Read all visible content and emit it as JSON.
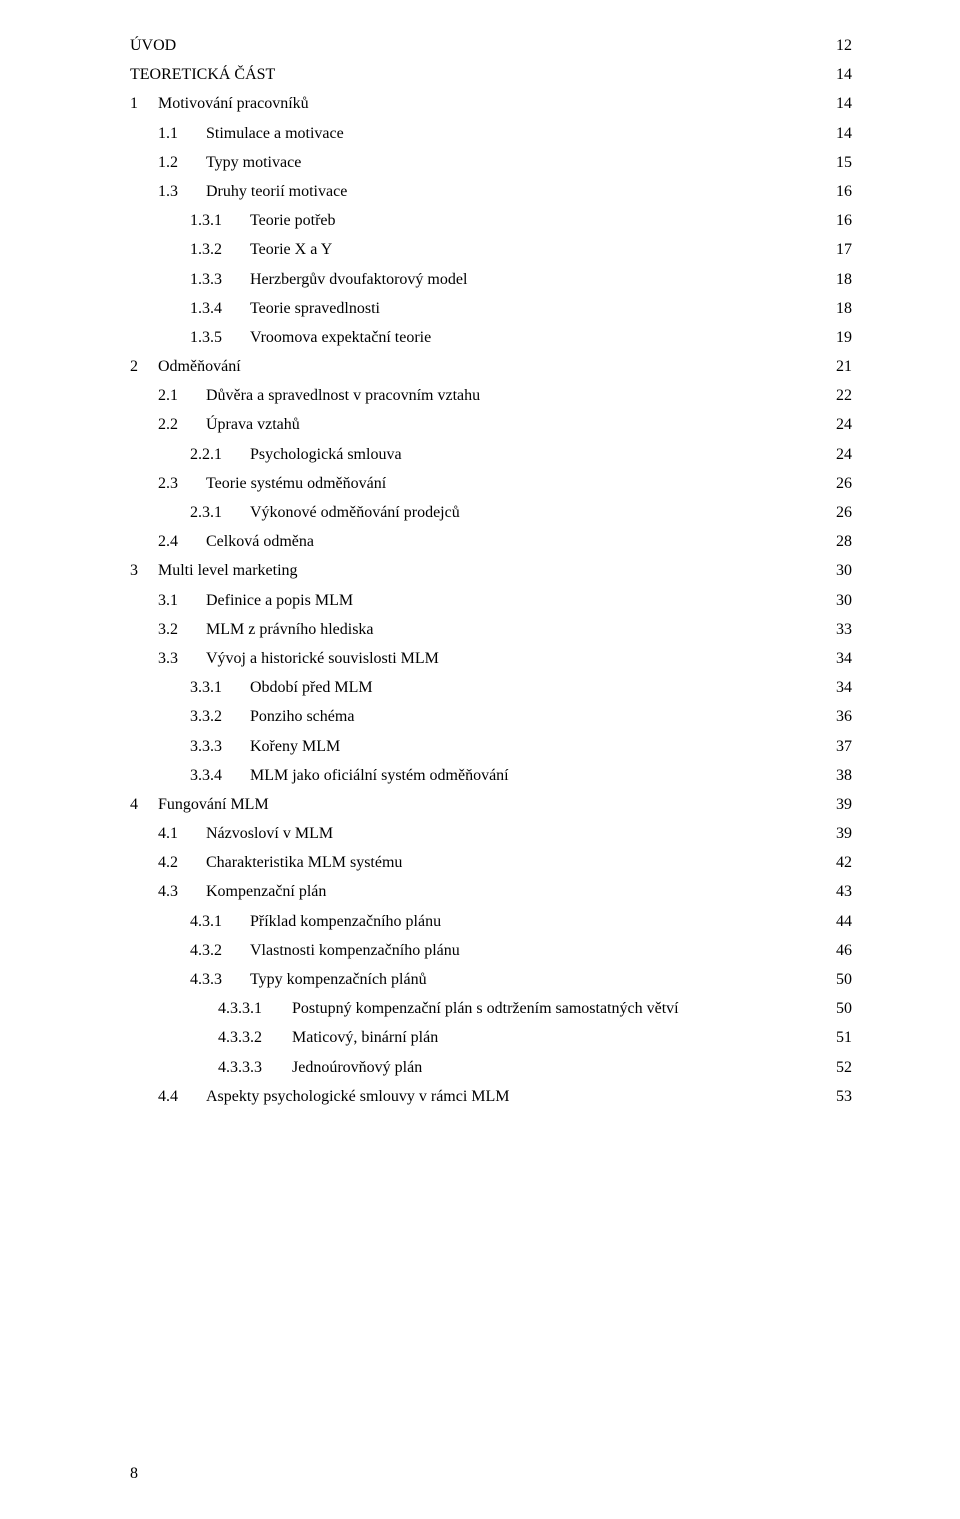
{
  "page_number": "8",
  "font": {
    "family": "Times New Roman",
    "size_pt": 12,
    "color": "#000000"
  },
  "background_color": "#ffffff",
  "toc": [
    {
      "level": 0,
      "num": "",
      "title": "ÚVOD",
      "page": "12"
    },
    {
      "level": 0,
      "num": "",
      "title": "TEORETICKÁ ČÁST",
      "page": "14"
    },
    {
      "level": 1,
      "num": "1",
      "title": "Motivování pracovníků",
      "page": "14"
    },
    {
      "level": 2,
      "num": "1.1",
      "title": "Stimulace a motivace",
      "page": "14"
    },
    {
      "level": 2,
      "num": "1.2",
      "title": "Typy motivace",
      "page": "15"
    },
    {
      "level": 2,
      "num": "1.3",
      "title": "Druhy teorií motivace",
      "page": "16"
    },
    {
      "level": 3,
      "num": "1.3.1",
      "title": "Teorie potřeb",
      "page": "16"
    },
    {
      "level": 3,
      "num": "1.3.2",
      "title": "Teorie X a Y",
      "page": "17"
    },
    {
      "level": 3,
      "num": "1.3.3",
      "title": "Herzbergův dvoufaktorový model",
      "page": "18"
    },
    {
      "level": 3,
      "num": "1.3.4",
      "title": "Teorie spravedlnosti",
      "page": "18"
    },
    {
      "level": 3,
      "num": "1.3.5",
      "title": "Vroomova expektační teorie",
      "page": "19"
    },
    {
      "level": 1,
      "num": "2",
      "title": "Odměňování",
      "page": "21"
    },
    {
      "level": 2,
      "num": "2.1",
      "title": "Důvěra a spravedlnost v pracovním vztahu",
      "page": "22"
    },
    {
      "level": 2,
      "num": "2.2",
      "title": "Úprava vztahů",
      "page": "24"
    },
    {
      "level": 3,
      "num": "2.2.1",
      "title": "Psychologická smlouva",
      "page": "24"
    },
    {
      "level": 2,
      "num": "2.3",
      "title": "Teorie systému odměňování",
      "page": "26"
    },
    {
      "level": 3,
      "num": "2.3.1",
      "title": "Výkonové odměňování prodejců",
      "page": "26"
    },
    {
      "level": 2,
      "num": "2.4",
      "title": "Celková odměna",
      "page": "28"
    },
    {
      "level": 1,
      "num": "3",
      "title": "Multi level marketing",
      "page": "30"
    },
    {
      "level": 2,
      "num": "3.1",
      "title": "Definice a popis MLM",
      "page": "30"
    },
    {
      "level": 2,
      "num": "3.2",
      "title": "MLM z právního hlediska",
      "page": "33"
    },
    {
      "level": 2,
      "num": "3.3",
      "title": "Vývoj a historické souvislosti MLM",
      "page": "34"
    },
    {
      "level": 3,
      "num": "3.3.1",
      "title": "Období před MLM",
      "page": "34"
    },
    {
      "level": 3,
      "num": "3.3.2",
      "title": "Ponziho schéma",
      "page": "36"
    },
    {
      "level": 3,
      "num": "3.3.3",
      "title": "Kořeny MLM",
      "page": "37"
    },
    {
      "level": 3,
      "num": "3.3.4",
      "title": "MLM jako oficiální systém odměňování",
      "page": "38"
    },
    {
      "level": 1,
      "num": "4",
      "title": "Fungování MLM",
      "page": "39"
    },
    {
      "level": 2,
      "num": "4.1",
      "title": "Názvosloví v MLM",
      "page": "39"
    },
    {
      "level": 2,
      "num": "4.2",
      "title": "Charakteristika MLM systému",
      "page": "42"
    },
    {
      "level": 2,
      "num": "4.3",
      "title": "Kompenzační plán",
      "page": "43"
    },
    {
      "level": 3,
      "num": "4.3.1",
      "title": "Příklad kompenzačního plánu",
      "page": "44"
    },
    {
      "level": 3,
      "num": "4.3.2",
      "title": "Vlastnosti kompenzačního plánu",
      "page": "46"
    },
    {
      "level": 3,
      "num": "4.3.3",
      "title": "Typy kompenzačních plánů",
      "page": "50"
    },
    {
      "level": 4,
      "num": "4.3.3.1",
      "title": "Postupný kompenzační plán s odtržením samostatných větví",
      "page": "50"
    },
    {
      "level": 4,
      "num": "4.3.3.2",
      "title": "Maticový, binární plán",
      "page": "51"
    },
    {
      "level": 4,
      "num": "4.3.3.3",
      "title": "Jednoúrovňový plán",
      "page": "52"
    },
    {
      "level": 2,
      "num": "4.4",
      "title": "Aspekty psychologické smlouvy v rámci MLM",
      "page": "53"
    }
  ]
}
